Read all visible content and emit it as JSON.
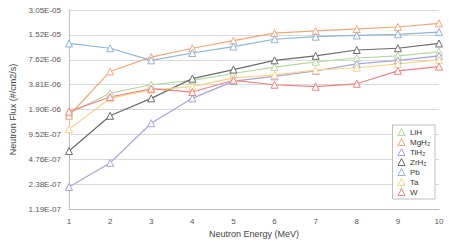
{
  "chart_data": {
    "type": "line",
    "x_label": "Neutron Energy (MeV)",
    "y_label": "Neutron Flux (#/cm2/s)",
    "x": [
      1,
      2,
      3,
      4,
      5,
      6,
      7,
      8,
      9,
      10
    ],
    "xlim": [
      1,
      10
    ],
    "xticks": [
      1,
      2,
      3,
      4,
      5,
      6,
      7,
      8,
      9,
      10
    ],
    "ylim": [
      1.19e-07,
      3.05e-05
    ],
    "yticks": [
      {
        "value": 1.19e-07,
        "label": "1.19E-07"
      },
      {
        "value": 2.38e-07,
        "label": "2.38E-07"
      },
      {
        "value": 4.76e-07,
        "label": "4.76E-07"
      },
      {
        "value": 9.52e-07,
        "label": "9.52E-07"
      },
      {
        "value": 1.9e-06,
        "label": "1.90E-06"
      },
      {
        "value": 3.81e-06,
        "label": "3.81E-06"
      },
      {
        "value": 7.62e-06,
        "label": "7.62E-06"
      },
      {
        "value": 1.52e-05,
        "label": "1.52E-05"
      },
      {
        "value": 3.05e-05,
        "label": "3.05E-05"
      }
    ],
    "log": "y",
    "grid": true,
    "legend": "lower right",
    "marker": "triangle",
    "series": [
      {
        "name": "LiH",
        "color": "#b7d7a0",
        "values": [
          1.7e-06,
          3e-06,
          3.8e-06,
          4.3e-06,
          5.2e-06,
          6.2e-06,
          7.2e-06,
          8e-06,
          8.5e-06,
          9.5e-06
        ]
      },
      {
        "name": "MgH₂",
        "color": "#f2a779",
        "values": [
          1.6e-06,
          5.5e-06,
          8.2e-06,
          1.05e-05,
          1.3e-05,
          1.6e-05,
          1.7e-05,
          1.8e-05,
          1.9e-05,
          2.1e-05
        ]
      },
      {
        "name": "TiH₂",
        "color": "#a6a3de",
        "values": [
          2.2e-07,
          4.3e-07,
          1.3e-06,
          2.6e-06,
          4.2e-06,
          4.8e-06,
          5.6e-06,
          6.8e-06,
          7.5e-06,
          8.5e-06
        ]
      },
      {
        "name": "ZrH₂",
        "color": "#6b6b6b",
        "values": [
          6e-07,
          1.6e-06,
          2.6e-06,
          4.5e-06,
          5.8e-06,
          7.5e-06,
          8.5e-06,
          1e-05,
          1.05e-05,
          1.2e-05
        ]
      },
      {
        "name": "Pb",
        "color": "#8fb3d9",
        "values": [
          1.2e-05,
          1.05e-05,
          7.5e-06,
          9.2e-06,
          1.1e-05,
          1.35e-05,
          1.45e-05,
          1.5e-05,
          1.55e-05,
          1.65e-05
        ]
      },
      {
        "name": "Ta",
        "color": "#f7d58a",
        "values": [
          1.1e-06,
          2.6e-06,
          3.3e-06,
          3.6e-06,
          4.6e-06,
          5e-06,
          5.7e-06,
          6.1e-06,
          6.8e-06,
          7.6e-06
        ]
      },
      {
        "name": "W",
        "color": "#f08080",
        "values": [
          1.8e-06,
          2.7e-06,
          3.4e-06,
          3.1e-06,
          4.3e-06,
          3.8e-06,
          3.6e-06,
          3.9e-06,
          5.6e-06,
          6.3e-06
        ]
      }
    ]
  }
}
